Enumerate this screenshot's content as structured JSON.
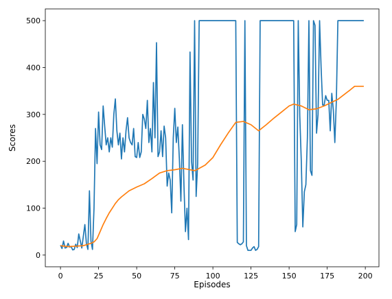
{
  "chart_data": {
    "type": "line",
    "xlabel": "Episodes",
    "ylabel": "Scores",
    "xlim": [
      -9.95,
      208.95
    ],
    "ylim": [
      -25,
      525
    ],
    "xticks": [
      0,
      25,
      50,
      75,
      100,
      125,
      150,
      175,
      200
    ],
    "yticks": [
      0,
      100,
      200,
      300,
      400,
      500
    ],
    "grid": false,
    "series": [
      {
        "color": "#1f77b4",
        "values": [
          21,
          14,
          30,
          15,
          16,
          25,
          17,
          18,
          11,
          12,
          23,
          16,
          45,
          30,
          15,
          40,
          65,
          25,
          12,
          137,
          30,
          12,
          100,
          270,
          195,
          305,
          235,
          225,
          318,
          275,
          235,
          250,
          220,
          250,
          230,
          300,
          333,
          265,
          235,
          260,
          205,
          250,
          220,
          265,
          293,
          250,
          240,
          235,
          270,
          210,
          208,
          240,
          208,
          220,
          300,
          290,
          270,
          330,
          240,
          270,
          220,
          368,
          250,
          453,
          210,
          220,
          265,
          210,
          275,
          250,
          147,
          175,
          160,
          90,
          250,
          313,
          240,
          273,
          205,
          115,
          278,
          150,
          50,
          100,
          33,
          433,
          200,
          160,
          500,
          125,
          195,
          500,
          500,
          500,
          500,
          500,
          500,
          500,
          500,
          500,
          500,
          500,
          500,
          500,
          500,
          500,
          500,
          500,
          500,
          500,
          500,
          500,
          500,
          500,
          500,
          500,
          27,
          24,
          22,
          24,
          28,
          500,
          20,
          10,
          10,
          10,
          15,
          18,
          10,
          12,
          18,
          500,
          500,
          500,
          500,
          500,
          500,
          500,
          500,
          500,
          500,
          500,
          500,
          500,
          500,
          500,
          500,
          500,
          500,
          500,
          500,
          500,
          500,
          500,
          50,
          65,
          500,
          297,
          200,
          60,
          135,
          150,
          250,
          500,
          180,
          170,
          500,
          490,
          260,
          300,
          500,
          400,
          320,
          320,
          340,
          330,
          330,
          265,
          345,
          310,
          240,
          330,
          500,
          500,
          500,
          500,
          500,
          500,
          500,
          500,
          500,
          500,
          500,
          500,
          500,
          500,
          500,
          500,
          500,
          500
        ]
      },
      {
        "color": "#ff7f0e",
        "points": [
          [
            0,
            20
          ],
          [
            5,
            18
          ],
          [
            10,
            19
          ],
          [
            15,
            20
          ],
          [
            20,
            25
          ],
          [
            22,
            28
          ],
          [
            24,
            35
          ],
          [
            26,
            50
          ],
          [
            28,
            65
          ],
          [
            30,
            78
          ],
          [
            32,
            90
          ],
          [
            34,
            100
          ],
          [
            36,
            110
          ],
          [
            38,
            118
          ],
          [
            40,
            124
          ],
          [
            45,
            137
          ],
          [
            50,
            145
          ],
          [
            55,
            152
          ],
          [
            60,
            163
          ],
          [
            65,
            175
          ],
          [
            70,
            180
          ],
          [
            75,
            182
          ],
          [
            80,
            185
          ],
          [
            85,
            182
          ],
          [
            88,
            180
          ],
          [
            90,
            183
          ],
          [
            95,
            192
          ],
          [
            100,
            208
          ],
          [
            105,
            235
          ],
          [
            110,
            260
          ],
          [
            115,
            283
          ],
          [
            120,
            285
          ],
          [
            125,
            278
          ],
          [
            130,
            265
          ],
          [
            135,
            278
          ],
          [
            140,
            292
          ],
          [
            145,
            305
          ],
          [
            150,
            318
          ],
          [
            153,
            322
          ],
          [
            158,
            318
          ],
          [
            163,
            310
          ],
          [
            168,
            312
          ],
          [
            173,
            318
          ],
          [
            178,
            326
          ],
          [
            182,
            332
          ],
          [
            186,
            342
          ],
          [
            190,
            352
          ],
          [
            193,
            360
          ],
          [
            199,
            360
          ]
        ]
      }
    ]
  }
}
